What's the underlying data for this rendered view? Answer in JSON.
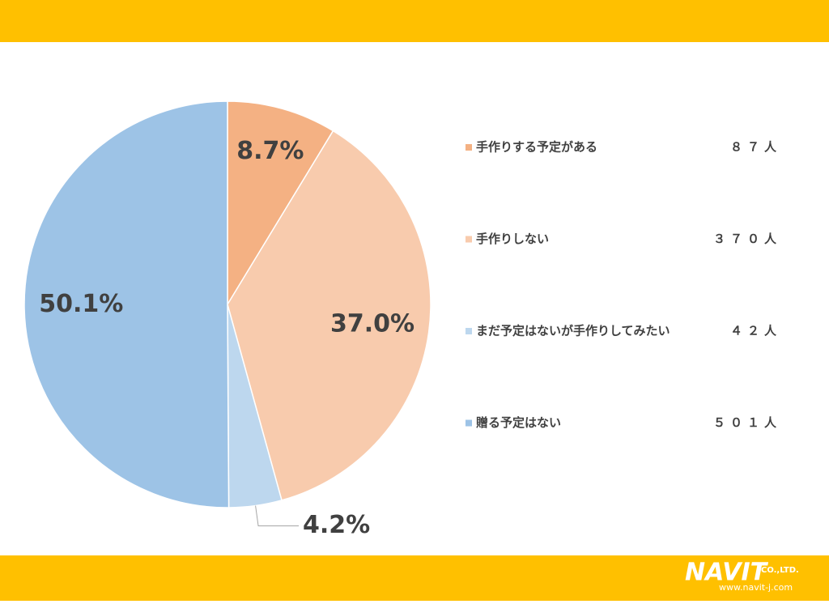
{
  "chart_data": {
    "type": "pie",
    "categories": [
      "手作りする予定がある",
      "手作りしない",
      "まだ予定はないが手作りしてみたい",
      "贈る予定はない"
    ],
    "values": [
      8.7,
      37.0,
      4.2,
      50.1
    ],
    "value_labels": [
      "8.7%",
      "37.0%",
      "4.2%",
      "50.1%"
    ],
    "colors": [
      "#f4b183",
      "#f8cbad",
      "#bdd7ee",
      "#9dc3e6"
    ],
    "legend_values": [
      "８７人",
      "３７０人",
      "４２人",
      "５０１人"
    ],
    "legend": "right"
  },
  "footer": {
    "logo": "NAVIT",
    "company": "CO.,LTD.",
    "url": "www.navit-j.com"
  }
}
